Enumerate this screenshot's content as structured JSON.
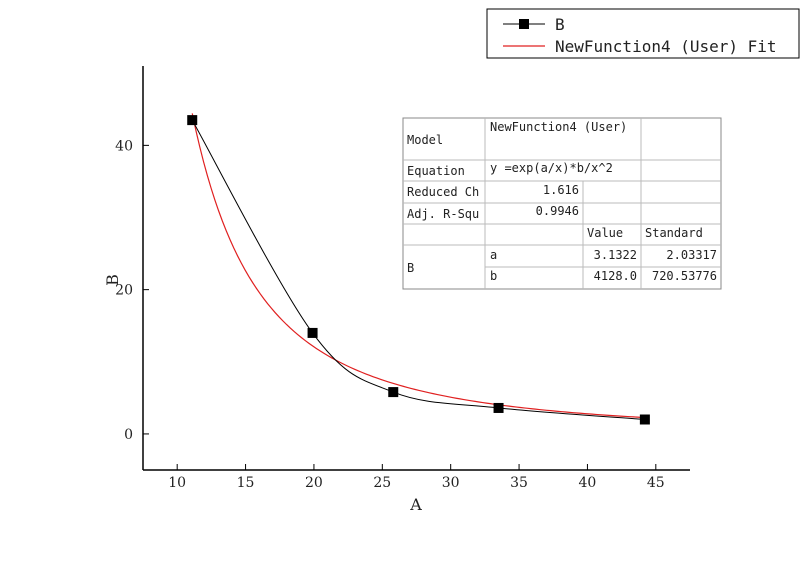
{
  "chart_data": {
    "type": "scatter",
    "xlabel": "A",
    "ylabel": "B",
    "xlim": [
      7.5,
      47.5
    ],
    "ylim": [
      -5,
      51
    ],
    "xticks": [
      10,
      15,
      20,
      25,
      30,
      35,
      40,
      45
    ],
    "yticks": [
      0,
      20,
      40
    ],
    "grid": false,
    "legend_position": "top-right",
    "series": [
      {
        "name": "B",
        "type": "line+markers",
        "color": "#000000",
        "marker": "square",
        "x": [
          11.1,
          19.9,
          25.8,
          33.5,
          44.2
        ],
        "y": [
          43.5,
          14.0,
          5.8,
          3.6,
          2.0
        ]
      },
      {
        "name": "NewFunction4 (User) Fit",
        "type": "line",
        "color": "#e02020",
        "function": "y = exp(a/x)*b/x^2",
        "params": {
          "a": 3.1322,
          "b": 4128.0
        },
        "x_range": [
          11.1,
          44.2
        ]
      }
    ],
    "fit_table": {
      "model_label": "Model",
      "model_value": "NewFunction4 (User)",
      "equation_label": "Equation",
      "equation_value": "y =exp(a/x)*b/x^2",
      "reduced_chi_label": "Reduced Ch",
      "reduced_chi_value": "1.616",
      "adj_r_label": "Adj. R-Squ",
      "adj_r_value": "0.9946",
      "value_header": "Value",
      "standard_header": "Standard",
      "group_label": "B",
      "rows": [
        {
          "param": "a",
          "value": "3.1322",
          "std": "2.03317"
        },
        {
          "param": "b",
          "value": "4128.0",
          "std": "720.53776"
        }
      ]
    }
  }
}
